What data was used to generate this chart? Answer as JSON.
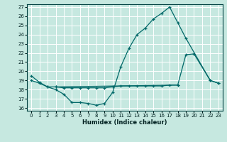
{
  "xlabel": "Humidex (Indice chaleur)",
  "bg_color": "#c6e8e0",
  "grid_color": "#ffffff",
  "line_color": "#006868",
  "xlim": [
    -0.5,
    23.5
  ],
  "ylim": [
    15.7,
    27.3
  ],
  "yticks": [
    16,
    17,
    18,
    19,
    20,
    21,
    22,
    23,
    24,
    25,
    26,
    27
  ],
  "xticks": [
    0,
    1,
    2,
    3,
    4,
    5,
    6,
    7,
    8,
    9,
    10,
    11,
    12,
    13,
    14,
    15,
    16,
    17,
    18,
    19,
    20,
    21,
    22,
    23
  ],
  "line1_x": [
    0,
    1,
    2,
    3,
    4,
    5,
    6,
    7,
    8,
    9,
    10,
    11,
    12,
    13,
    14,
    15,
    16,
    17,
    18,
    19,
    22,
    23
  ],
  "line1_y": [
    19.5,
    18.8,
    18.3,
    18.0,
    17.5,
    16.6,
    16.6,
    16.5,
    16.3,
    16.5,
    17.7,
    20.5,
    22.5,
    24.0,
    24.7,
    25.7,
    26.3,
    27.0,
    25.3,
    23.6,
    19.0,
    18.7
  ],
  "line2_x": [
    0,
    1,
    2,
    3,
    18,
    19,
    20,
    22,
    23
  ],
  "line2_y": [
    19.0,
    18.7,
    18.3,
    18.3,
    18.5,
    21.8,
    21.9,
    19.0,
    18.7
  ],
  "line3_x": [
    3,
    4,
    5,
    6,
    7,
    8,
    9,
    10,
    11,
    12,
    13,
    14,
    15,
    16,
    17,
    18
  ],
  "line3_y": [
    18.3,
    18.2,
    18.2,
    18.2,
    18.2,
    18.2,
    18.2,
    18.3,
    18.4,
    18.4,
    18.4,
    18.4,
    18.4,
    18.4,
    18.5,
    18.5
  ]
}
